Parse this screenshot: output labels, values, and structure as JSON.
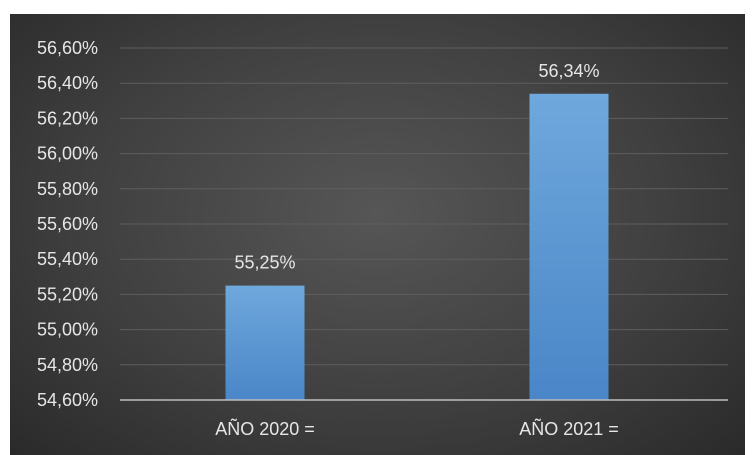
{
  "chart_data": {
    "type": "bar",
    "categories": [
      "AÑO 2020 =",
      "AÑO 2021 ="
    ],
    "values": [
      55.25,
      56.34
    ],
    "value_labels": [
      "55,25%",
      "56,34%"
    ],
    "title": "",
    "xlabel": "",
    "ylabel": "",
    "ylim": [
      54.6,
      56.6
    ],
    "yticks": [
      54.6,
      54.8,
      55.0,
      55.2,
      55.4,
      55.6,
      55.8,
      56.0,
      56.2,
      56.4,
      56.6
    ],
    "ytick_labels": [
      "54,60%",
      "54,80%",
      "55,00%",
      "55,20%",
      "55,40%",
      "55,60%",
      "55,80%",
      "56,00%",
      "56,20%",
      "56,40%",
      "56,60%"
    ],
    "grid": true,
    "legend": "none",
    "colors": {
      "bar_top": "#6fa8dc",
      "bar_bottom": "#4a86c8",
      "background": "#404040",
      "text": "#e6e6e6"
    }
  }
}
